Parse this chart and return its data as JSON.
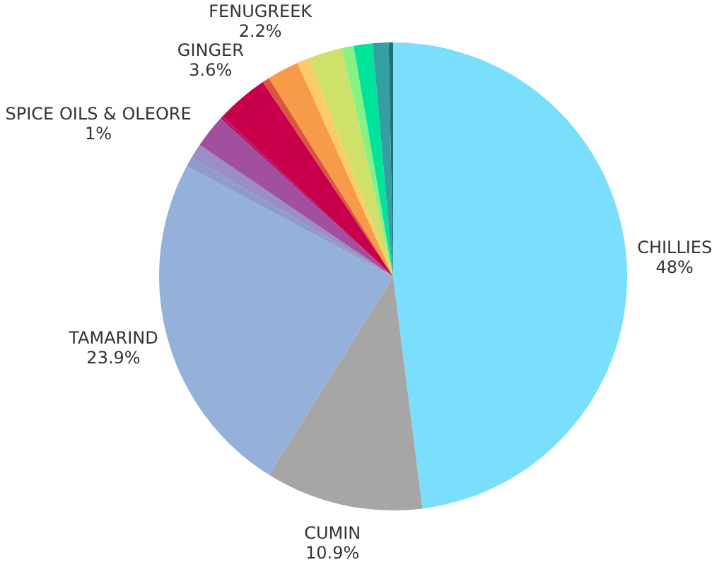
{
  "chart_data": {
    "type": "pie",
    "categories": [
      "CHILLIES",
      "CUMIN",
      "TAMARIND",
      null,
      "SPICE OILS & OLEORE",
      null,
      null,
      "GINGER",
      null,
      "FENUGREEK",
      null,
      null,
      null,
      null,
      null,
      null
    ],
    "values": [
      48,
      10.9,
      23.9,
      0.7,
      1,
      2.3,
      0.2,
      3.6,
      0.5,
      2.2,
      0.8,
      2.4,
      0.8,
      1.3,
      1.1,
      0.3
    ],
    "value_labels": [
      "48%",
      "10.9%",
      "23.9%",
      null,
      "1%",
      null,
      null,
      "3.6%",
      null,
      "2.2%",
      null,
      null,
      null,
      null,
      null,
      null
    ],
    "colors": [
      "#7adffc",
      "#a6a6a6",
      "#95b0d9",
      "#8e9bcc",
      "#9a8ec4",
      "#a34f9f",
      "#b0156e",
      "#c8004b",
      "#d9573f",
      "#f79a4a",
      "#fecb66",
      "#cfe16a",
      "#85f283",
      "#00e39a",
      "#32a0a0",
      "#1f6f7a"
    ],
    "legend": false
  }
}
